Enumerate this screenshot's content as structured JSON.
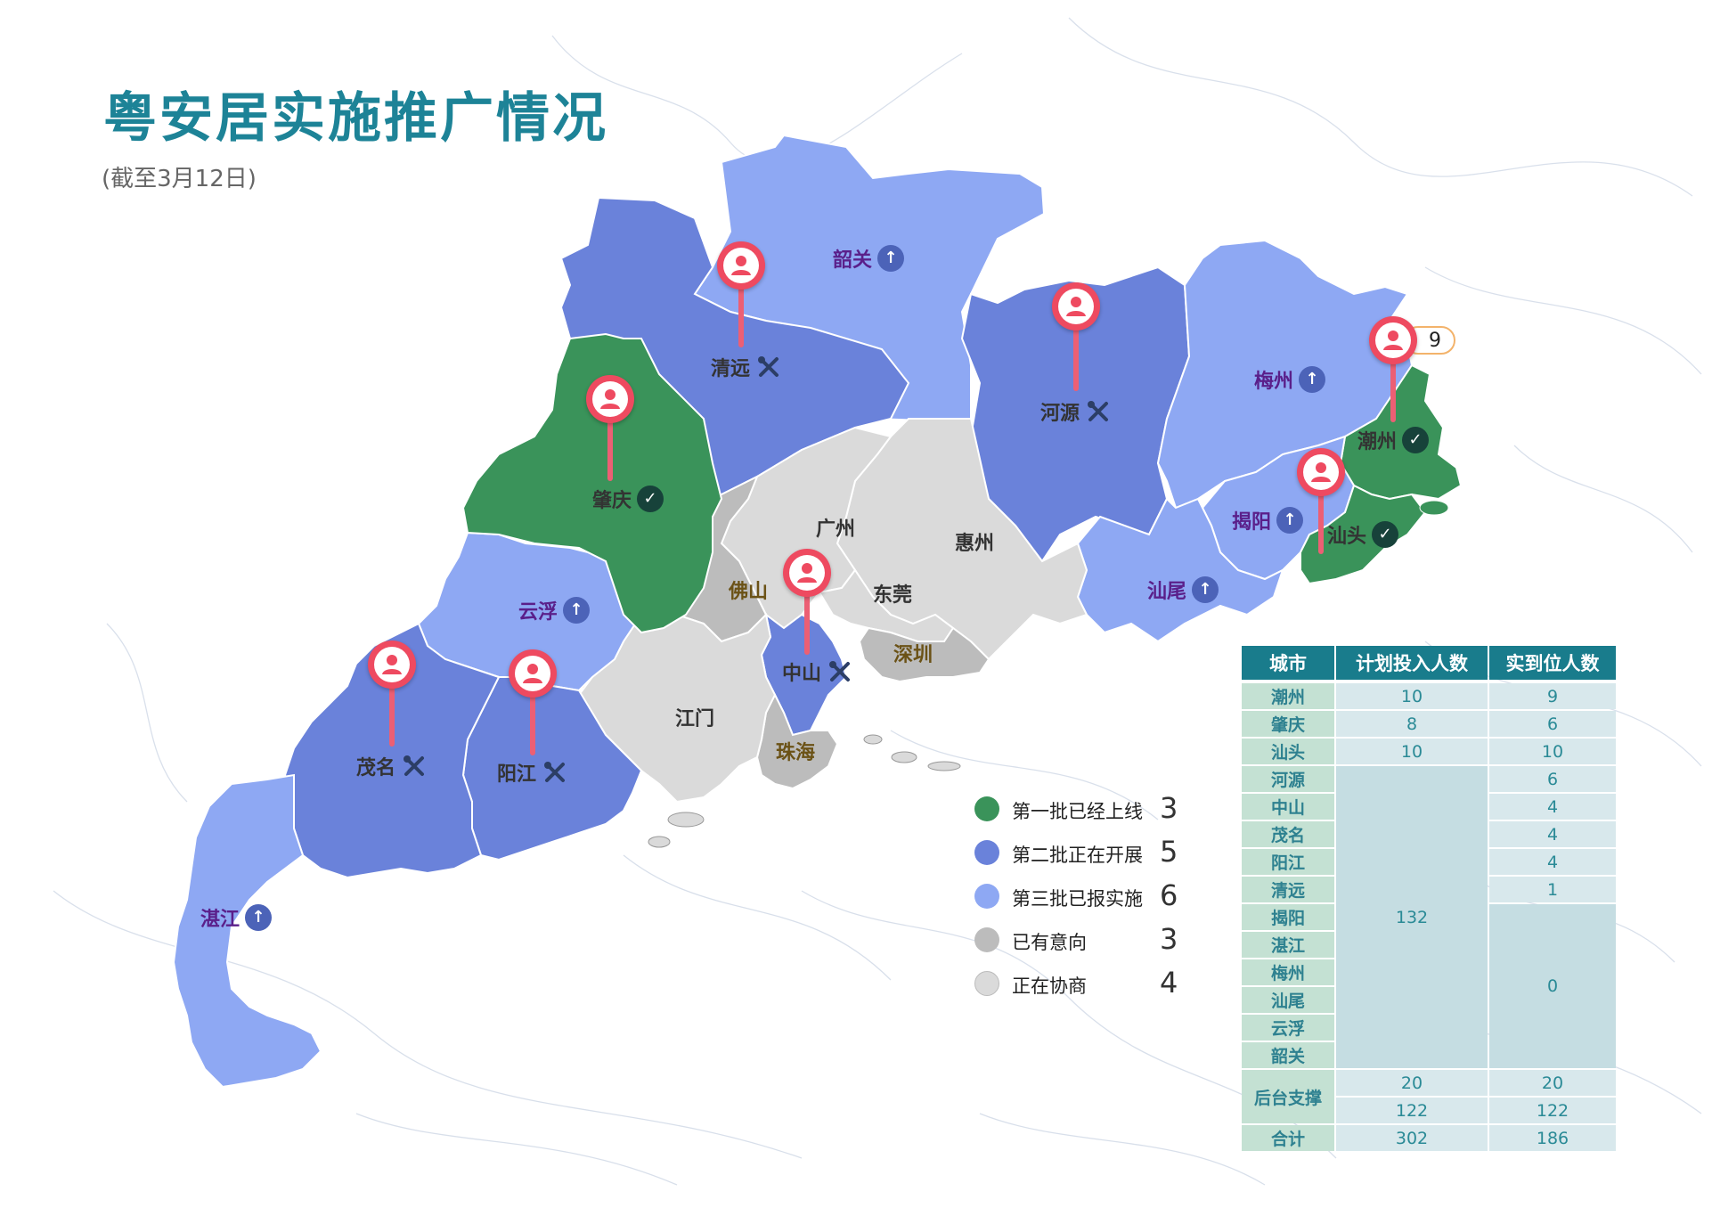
{
  "title": "粤安居实施推广情况",
  "subtitle": "(截至3月12日)",
  "colors": {
    "batch1": "#3a935a",
    "batch2": "#6a82da",
    "batch3": "#8ea8f3",
    "intent": "#bcbcbc",
    "negotiating": "#dadada",
    "title": "#1d8397",
    "pin": "#ee4a60",
    "table_header": "#197c8c"
  },
  "legend": [
    {
      "label": "第一批已经上线",
      "count": "3",
      "color": "#3a935a"
    },
    {
      "label": "第二批正在开展",
      "count": "5",
      "color": "#6a82da"
    },
    {
      "label": "第三批已报实施",
      "count": "6",
      "color": "#8ea8f3"
    },
    {
      "label": "已有意向",
      "count": "3",
      "color": "#bcbcbc"
    },
    {
      "label": "正在协商",
      "count": "4",
      "color": "#dadada"
    }
  ],
  "cities": {
    "shaoguan": {
      "name": "韶关",
      "status": "第三批已报实施",
      "icon": "up-arrow-icon"
    },
    "qingyuan": {
      "name": "清远",
      "status": "第二批正在开展",
      "icon": "tools-icon",
      "staff": "1"
    },
    "heyuan": {
      "name": "河源",
      "status": "第二批正在开展",
      "icon": "tools-icon",
      "staff": "6"
    },
    "meizhou": {
      "name": "梅州",
      "status": "第三批已报实施",
      "icon": "up-arrow-icon"
    },
    "chaozhou": {
      "name": "潮州",
      "status": "第一批已经上线",
      "icon": "check-icon",
      "staff": "9"
    },
    "zhaoqing": {
      "name": "肇庆",
      "status": "第一批已经上线",
      "icon": "check-icon",
      "staff": "6"
    },
    "guangzhou": {
      "name": "广州",
      "status": "正在协商"
    },
    "huizhou": {
      "name": "惠州",
      "status": "正在协商"
    },
    "jieyang": {
      "name": "揭阳",
      "status": "第三批已报实施",
      "icon": "up-arrow-icon"
    },
    "shantou": {
      "name": "汕头",
      "status": "第一批已经上线",
      "icon": "check-icon",
      "staff": "10"
    },
    "foshan": {
      "name": "佛山",
      "status": "已有意向"
    },
    "dongguan": {
      "name": "东莞",
      "status": "正在协商"
    },
    "yunfu": {
      "name": "云浮",
      "status": "第三批已报实施",
      "icon": "up-arrow-icon"
    },
    "shanwei": {
      "name": "汕尾",
      "status": "第三批已报实施",
      "icon": "up-arrow-icon"
    },
    "zhongshan": {
      "name": "中山",
      "status": "第二批正在开展",
      "icon": "tools-icon",
      "staff": "4"
    },
    "shenzhen": {
      "name": "深圳",
      "status": "已有意向"
    },
    "jiangmen": {
      "name": "江门",
      "status": "正在协商"
    },
    "maoming": {
      "name": "茂名",
      "status": "第二批正在开展",
      "icon": "tools-icon",
      "staff": "4"
    },
    "yangjiang": {
      "name": "阳江",
      "status": "第二批正在开展",
      "icon": "tools-icon",
      "staff": "4"
    },
    "zhuhai": {
      "name": "珠海",
      "status": "已有意向"
    },
    "zhanjiang": {
      "name": "湛江",
      "status": "第三批已报实施",
      "icon": "up-arrow-icon"
    }
  },
  "table": {
    "headers": [
      "城市",
      "计划投入人数",
      "实到位人数"
    ],
    "rows": [
      {
        "city": "潮州",
        "planned": "10",
        "actual": "9"
      },
      {
        "city": "肇庆",
        "planned": "8",
        "actual": "6"
      },
      {
        "city": "汕头",
        "planned": "10",
        "actual": "10"
      },
      {
        "city": "河源",
        "planned": "",
        "actual": "6"
      },
      {
        "city": "中山",
        "planned": "",
        "actual": "4"
      },
      {
        "city": "茂名",
        "planned": "",
        "actual": "4"
      },
      {
        "city": "阳江",
        "planned": "",
        "actual": "4"
      },
      {
        "city": "清远",
        "planned": "",
        "actual": "1"
      },
      {
        "city": "揭阳",
        "planned": "",
        "actual": ""
      },
      {
        "city": "湛江",
        "planned": "",
        "actual": ""
      },
      {
        "city": "梅州",
        "planned": "",
        "actual": ""
      },
      {
        "city": "汕尾",
        "planned": "",
        "actual": ""
      },
      {
        "city": "云浮",
        "planned": "",
        "actual": ""
      },
      {
        "city": "韶关",
        "planned": "",
        "actual": ""
      }
    ],
    "merged_planned": "132",
    "merged_actual_zero": "0",
    "backend_label": "后台支撑",
    "backend_rows": [
      {
        "planned": "20",
        "actual": "20"
      },
      {
        "planned": "122",
        "actual": "122"
      }
    ],
    "total": {
      "label": "合计",
      "planned": "302",
      "actual": "186"
    }
  }
}
